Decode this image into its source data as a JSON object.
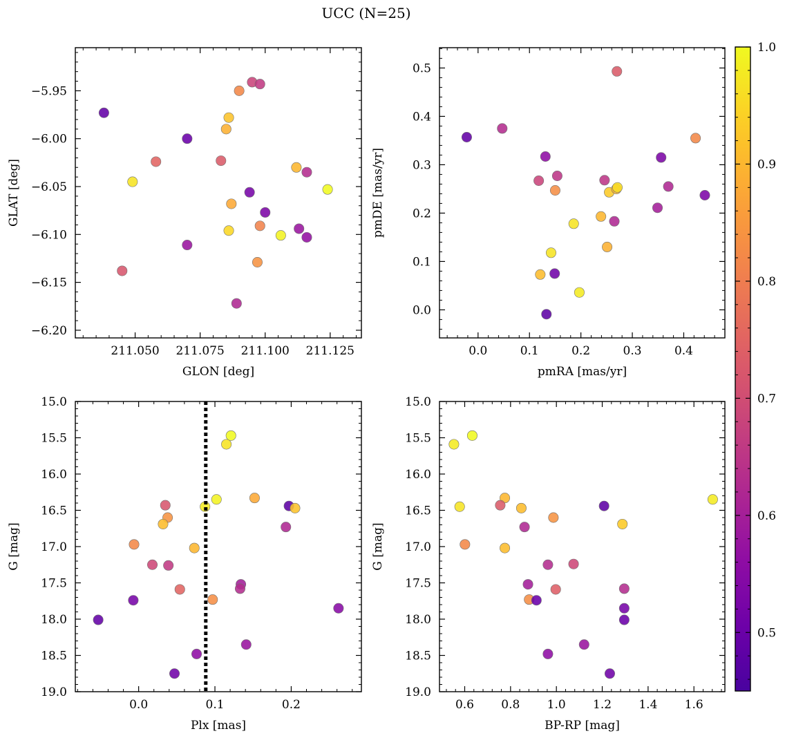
{
  "figure": {
    "title": "UCC (N=25)"
  },
  "colorbar": {
    "cmap": "plasma",
    "range": [
      0.45,
      1.0
    ],
    "ticks": [
      "0.5",
      "0.6",
      "0.7",
      "0.8",
      "0.9",
      "1.0"
    ]
  },
  "chart_data": [
    {
      "type": "scatter",
      "id": "glon-glat",
      "xlabel": "GLON [deg]",
      "ylabel": "GLAT [deg]",
      "xlim": [
        211.027,
        211.137
      ],
      "ylim": [
        -6.208,
        -5.905
      ],
      "xticks": [
        211.05,
        211.075,
        211.1,
        211.125
      ],
      "xtick_labels": [
        "211.050",
        "211.075",
        "211.100",
        "211.125"
      ],
      "yticks": [
        -5.95,
        -6.0,
        -6.05,
        -6.1,
        -6.15,
        -6.2
      ],
      "ytick_labels": [
        "−5.95",
        "−6.00",
        "−6.05",
        "−6.10",
        "−6.15",
        "−6.20"
      ],
      "x": [
        211.038,
        211.07,
        211.049,
        211.045,
        211.058,
        211.07,
        211.083,
        211.086,
        211.085,
        211.09,
        211.095,
        211.098,
        211.087,
        211.086,
        211.094,
        211.1,
        211.098,
        211.097,
        211.089,
        211.106,
        211.112,
        211.113,
        211.116,
        211.116,
        211.124
      ],
      "y": [
        -5.973,
        -6.0,
        -6.045,
        -6.138,
        -6.024,
        -6.111,
        -6.023,
        -5.978,
        -5.99,
        -5.95,
        -5.941,
        -5.943,
        -6.068,
        -6.096,
        -6.056,
        -6.077,
        -6.091,
        -6.129,
        -6.172,
        -6.101,
        -6.03,
        -6.094,
        -6.035,
        -6.103,
        -6.053
      ],
      "c": [
        0.49,
        0.5,
        0.97,
        0.72,
        0.75,
        0.58,
        0.73,
        0.92,
        0.89,
        0.82,
        0.68,
        0.66,
        0.88,
        0.95,
        0.52,
        0.53,
        0.81,
        0.84,
        0.62,
        0.99,
        0.9,
        0.58,
        0.63,
        0.57,
        1.0
      ]
    },
    {
      "type": "scatter",
      "id": "pmra-pmde",
      "xlabel": "pmRA [mas/yr]",
      "ylabel": "pmDE [mas/yr]",
      "xlim": [
        -0.075,
        0.48
      ],
      "ylim": [
        -0.058,
        0.542
      ],
      "xticks": [
        0.0,
        0.1,
        0.2,
        0.3,
        0.4
      ],
      "xtick_labels": [
        "0.0",
        "0.1",
        "0.2",
        "0.3",
        "0.4"
      ],
      "yticks": [
        0.0,
        0.1,
        0.2,
        0.3,
        0.4,
        0.5
      ],
      "ytick_labels": [
        "0.0",
        "0.1",
        "0.2",
        "0.3",
        "0.4",
        "0.5"
      ],
      "x": [
        -0.022,
        0.047,
        0.131,
        0.118,
        0.154,
        0.15,
        0.121,
        0.149,
        0.133,
        0.142,
        0.186,
        0.197,
        0.239,
        0.246,
        0.251,
        0.255,
        0.265,
        0.269,
        0.271,
        0.27,
        0.349,
        0.356,
        0.37,
        0.423,
        0.441
      ],
      "y": [
        0.357,
        0.375,
        0.317,
        0.267,
        0.277,
        0.247,
        0.073,
        0.075,
        -0.009,
        0.118,
        0.178,
        0.036,
        0.193,
        0.268,
        0.13,
        0.243,
        0.183,
        0.25,
        0.253,
        0.493,
        0.211,
        0.315,
        0.255,
        0.355,
        0.237
      ],
      "c": [
        0.49,
        0.63,
        0.56,
        0.68,
        0.65,
        0.83,
        0.91,
        0.51,
        0.48,
        0.97,
        0.97,
        0.98,
        0.9,
        0.65,
        0.89,
        0.93,
        0.62,
        0.9,
        0.96,
        0.73,
        0.6,
        0.53,
        0.62,
        0.82,
        0.53
      ]
    },
    {
      "type": "scatter",
      "id": "plx-g",
      "xlabel": "Plx [mas]",
      "ylabel": "G [mag]",
      "xlim": [
        -0.083,
        0.292
      ],
      "ylim": [
        19.0,
        15.0
      ],
      "invert_y": true,
      "xticks": [
        0.0,
        0.1,
        0.2
      ],
      "xtick_labels": [
        "0.0",
        "0.1",
        "0.2"
      ],
      "yticks": [
        15.0,
        15.5,
        16.0,
        16.5,
        17.0,
        17.5,
        18.0,
        18.5,
        19.0
      ],
      "ytick_labels": [
        "15.0",
        "15.5",
        "16.0",
        "16.5",
        "17.0",
        "17.5",
        "18.0",
        "18.5",
        "19.0"
      ],
      "vline": {
        "x": 0.088,
        "style": "dotted",
        "color": "#000000"
      },
      "x": [
        -0.053,
        -0.007,
        -0.006,
        0.018,
        0.035,
        0.038,
        0.032,
        0.039,
        0.054,
        0.047,
        0.076,
        0.073,
        0.087,
        0.102,
        0.115,
        0.121,
        0.097,
        0.134,
        0.133,
        0.141,
        0.152,
        0.193,
        0.197,
        0.205,
        0.262
      ],
      "y": [
        18.01,
        17.74,
        16.97,
        17.25,
        16.43,
        16.6,
        16.69,
        17.26,
        17.59,
        18.75,
        18.48,
        17.02,
        16.45,
        16.35,
        15.59,
        15.47,
        17.73,
        17.52,
        17.58,
        18.35,
        16.33,
        16.73,
        16.44,
        16.47,
        17.85
      ],
      "c": [
        0.49,
        0.52,
        0.82,
        0.69,
        0.72,
        0.84,
        0.91,
        0.66,
        0.75,
        0.51,
        0.56,
        0.9,
        0.98,
        0.99,
        0.97,
        1.0,
        0.83,
        0.6,
        0.63,
        0.58,
        0.88,
        0.62,
        0.48,
        0.92,
        0.55
      ]
    },
    {
      "type": "scatter",
      "id": "bprp-g",
      "xlabel": "BP-RP [mag]",
      "ylabel": "G [mag]",
      "xlim": [
        0.49,
        1.735
      ],
      "ylim": [
        19.0,
        15.0
      ],
      "invert_y": true,
      "xticks": [
        0.6,
        0.8,
        1.0,
        1.2,
        1.4,
        1.6
      ],
      "xtick_labels": [
        "0.6",
        "0.8",
        "1.0",
        "1.2",
        "1.4",
        "1.6"
      ],
      "yticks": [
        15.0,
        15.5,
        16.0,
        16.5,
        17.0,
        17.5,
        18.0,
        18.5,
        19.0
      ],
      "ytick_labels": [
        "15.0",
        "15.5",
        "16.0",
        "16.5",
        "17.0",
        "17.5",
        "18.0",
        "18.5",
        "19.0"
      ],
      "x": [
        0.553,
        0.633,
        0.578,
        0.601,
        0.775,
        0.755,
        0.847,
        0.775,
        0.861,
        0.881,
        0.913,
        0.963,
        0.987,
        0.997,
        0.963,
        1.075,
        1.121,
        1.208,
        1.233,
        1.288,
        1.296,
        1.296,
        1.296,
        1.682,
        0.876
      ],
      "y": [
        15.59,
        15.47,
        16.45,
        16.97,
        16.33,
        16.43,
        16.47,
        17.02,
        16.73,
        17.73,
        17.74,
        17.25,
        16.6,
        17.59,
        18.48,
        17.24,
        18.35,
        16.44,
        18.75,
        16.69,
        17.58,
        17.85,
        18.01,
        16.35,
        17.52
      ],
      "c": [
        0.98,
        1.0,
        0.97,
        0.82,
        0.9,
        0.73,
        0.91,
        0.91,
        0.62,
        0.83,
        0.5,
        0.63,
        0.84,
        0.74,
        0.56,
        0.69,
        0.58,
        0.48,
        0.51,
        0.93,
        0.63,
        0.52,
        0.5,
        0.98,
        0.6
      ]
    }
  ]
}
